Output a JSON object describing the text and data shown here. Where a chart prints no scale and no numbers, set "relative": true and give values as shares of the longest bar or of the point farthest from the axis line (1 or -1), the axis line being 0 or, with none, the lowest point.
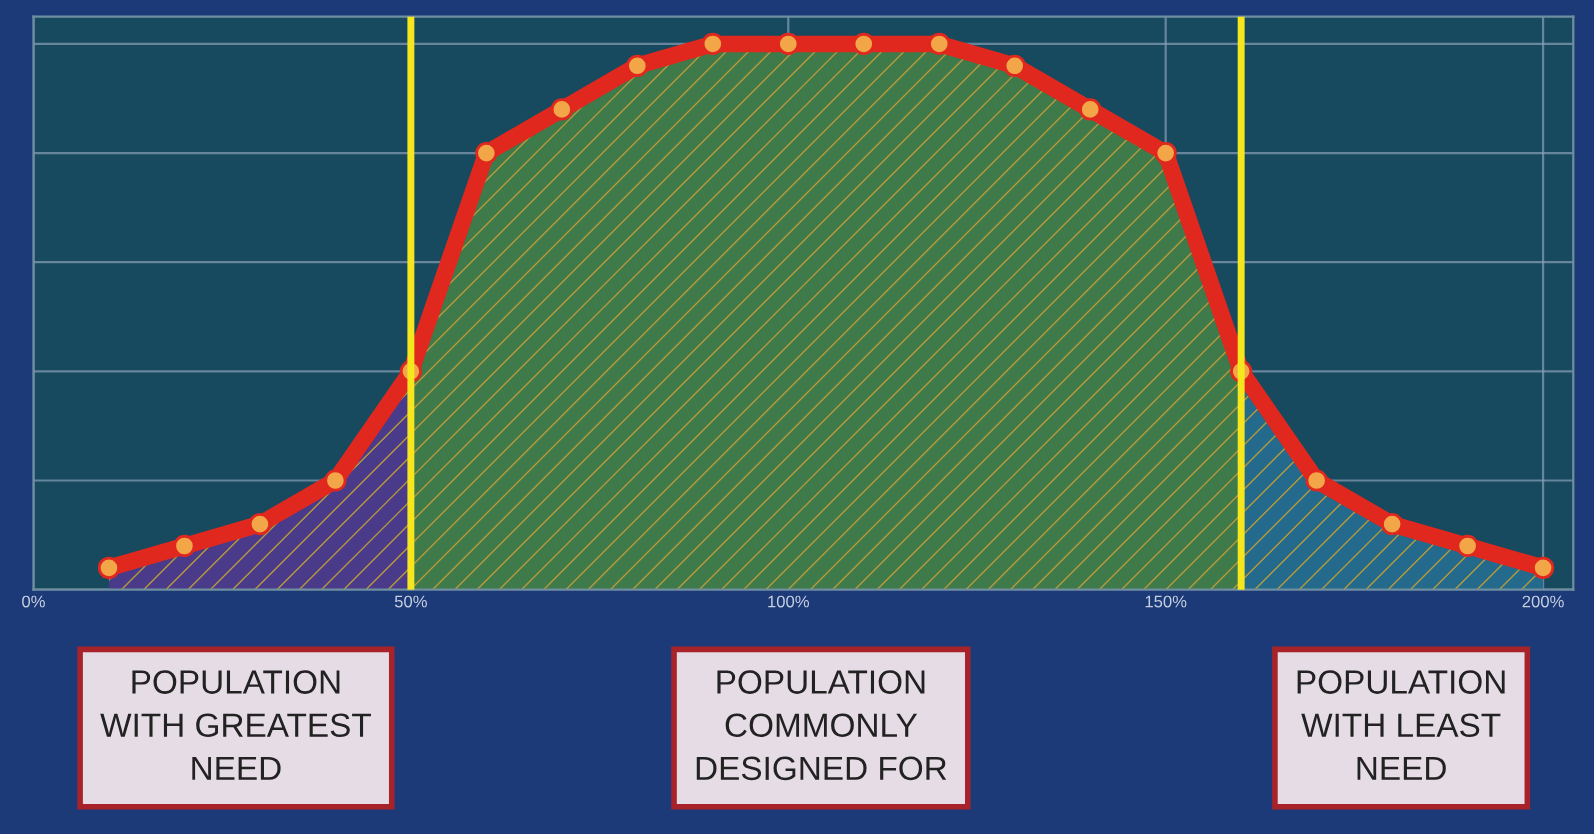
{
  "chart_data": {
    "type": "line",
    "relative": true,
    "x": [
      10,
      20,
      30,
      40,
      50,
      60,
      70,
      80,
      90,
      100,
      110,
      120,
      130,
      140,
      150,
      160,
      170,
      180,
      190,
      200
    ],
    "xlim": [
      0,
      204
    ],
    "xticks": [
      {
        "value": 0,
        "label": "0%"
      },
      {
        "value": 50,
        "label": "50%"
      },
      {
        "value": 100,
        "label": "100%"
      },
      {
        "value": 150,
        "label": "150%"
      },
      {
        "value": 200,
        "label": "200%"
      }
    ],
    "grid": true,
    "line_style": "solid",
    "series": [
      {
        "type": "area",
        "color": "#4a3a8a",
        "x": [
          10,
          20,
          30,
          40,
          50
        ],
        "values": [
          0.04,
          0.08,
          0.12,
          0.2,
          0.4
        ]
      },
      {
        "type": "area",
        "color": "#3f7a4a",
        "x": [
          50,
          60,
          70,
          80,
          90,
          100,
          110,
          120,
          130,
          140,
          150,
          160
        ],
        "values": [
          0.4,
          0.8,
          0.88,
          0.96,
          1,
          1,
          1,
          1,
          0.96,
          0.88,
          0.8,
          0.4
        ]
      },
      {
        "type": "area",
        "color": "#236a8c",
        "x": [
          160,
          170,
          180,
          190,
          200
        ],
        "values": [
          0.4,
          0.2,
          0.12,
          0.08,
          0.04
        ]
      },
      {
        "marker": "circle",
        "color": "#e0281e",
        "values": [
          0.04,
          0.08,
          0.12,
          0.2,
          0.4,
          0.8,
          0.88,
          0.96,
          1,
          1,
          1,
          1,
          0.96,
          0.88,
          0.8,
          0.4,
          0.2,
          0.12,
          0.08,
          0.04
        ]
      }
    ],
    "ref_lines": [
      {
        "axis": "x",
        "value": 50,
        "color": "#f5e61e"
      },
      {
        "axis": "x",
        "value": 160,
        "color": "#f5e61e"
      }
    ],
    "annotations": [
      "POPULATION\nWITH GREATEST\nNEED",
      "POPULATION\nCOMMONLY\nDESIGNED FOR",
      "POPULATION\nWITH LEAST\nNEED"
    ]
  }
}
